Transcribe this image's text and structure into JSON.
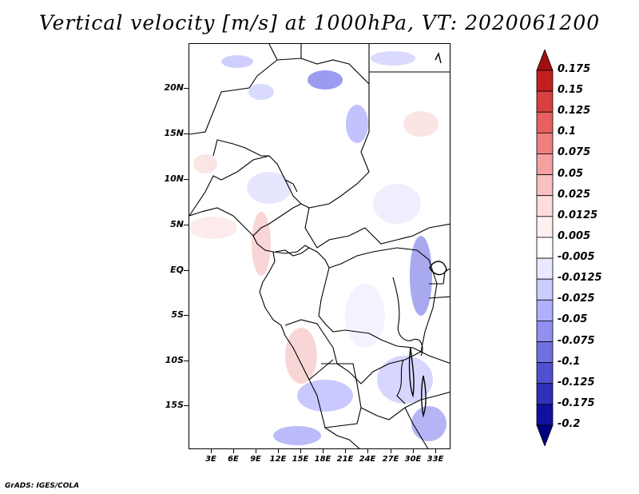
{
  "title": "Vertical velocity [m/s] at 1000hPa, VT: 2020061200",
  "credit": "GrADS: IGES/COLA",
  "map": {
    "lat_ticks": [
      "20N",
      "15N",
      "10N",
      "5N",
      "EQ",
      "5S",
      "10S",
      "15S"
    ],
    "lon_ticks": [
      "3E",
      "6E",
      "9E",
      "12E",
      "15E",
      "18E",
      "21E",
      "24E",
      "27E",
      "30E",
      "33E"
    ]
  },
  "colorbar": {
    "levels": [
      "0.175",
      "0.15",
      "0.125",
      "0.1",
      "0.075",
      "0.05",
      "0.025",
      "0.0125",
      "0.005",
      "-0.005",
      "-0.0125",
      "-0.025",
      "-0.05",
      "-0.075",
      "-0.1",
      "-0.125",
      "-0.175",
      "-0.2"
    ],
    "colors": [
      "#a01010",
      "#c22020",
      "#d84040",
      "#e86060",
      "#f08080",
      "#f4a0a0",
      "#f8c0c0",
      "#fcdcdc",
      "#fff0f0",
      "#ffffff",
      "#e8e8ff",
      "#ccccff",
      "#b0b0ff",
      "#9090f0",
      "#7070e0",
      "#5050d0",
      "#3030b8",
      "#1010a0",
      "#000080"
    ]
  }
}
